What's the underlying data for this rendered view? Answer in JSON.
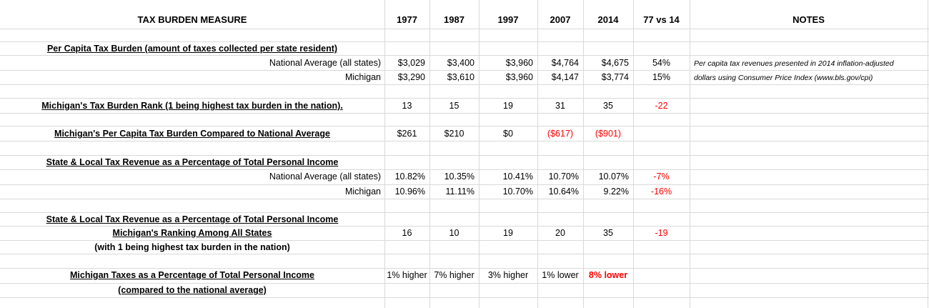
{
  "header": {
    "measure": "TAX BURDEN MEASURE",
    "y1977": "1977",
    "y1987": "1987",
    "y1997": "1997",
    "y2007": "2007",
    "y2014": "2014",
    "change": "77 vs 14",
    "notes": "NOTES"
  },
  "per_capita": {
    "title": "Per Capita Tax Burden (amount of taxes collected per state resident)",
    "national": {
      "label": "National Average (all states)",
      "v1977": "$3,029",
      "v1987": "$3,400",
      "v1997": "$3,960",
      "v2007": "$4,764",
      "v2014": "$4,675",
      "change": "54%"
    },
    "michigan": {
      "label": "Michigan",
      "v1977": "$3,290",
      "v1987": "$3,610",
      "v1997": "$3,960",
      "v2007": "$4,147",
      "v2014": "$3,774",
      "change": "15%"
    },
    "note_line1": "Per capita tax revenues presented in 2014 inflation-adjusted",
    "note_line2": "dollars using Consumer Price Index (www.bls.gov/cpi)"
  },
  "rank": {
    "title": "Michigan's Tax Burden Rank (1 being highest tax burden in the nation).",
    "v1977": "13",
    "v1987": "15",
    "v1997": "19",
    "v2007": "31",
    "v2014": "35",
    "change": "-22"
  },
  "compare": {
    "title": "Michigan's Per Capita Tax Burden Compared to National Average",
    "v1977": "$261",
    "v1987": "$210",
    "v1997": "$0",
    "v2007": "($617)",
    "v2014": "($901)"
  },
  "pct_income": {
    "title": "State & Local Tax Revenue as a Percentage of Total Personal Income",
    "national": {
      "label": "National Average (all states)",
      "v1977": "10.82%",
      "v1987": "10.35%",
      "v1997": "10.41%",
      "v2007": "10.70%",
      "v2014": "10.07%",
      "change": "-7%"
    },
    "michigan": {
      "label": "Michigan",
      "v1977": "10.96%",
      "v1987": "11.11%",
      "v1997": "10.70%",
      "v2007": "10.64%",
      "v2014": "9.22%",
      "change": "-16%"
    }
  },
  "ranking": {
    "title": "State & Local Tax Revenue as a Percentage of Total Personal Income ",
    "subtitle": "Michigan's Ranking Among All States",
    "footnote": "(with 1 being highest tax burden in the nation)",
    "v1977": "16",
    "v1987": "10",
    "v1997": "19",
    "v2007": "20",
    "v2014": "35",
    "change": "-19"
  },
  "mi_pct": {
    "title": "Michigan Taxes as a Percentage of Total Personal Income",
    "subtitle": "(compared to the national average)",
    "v1977": "1% higher",
    "v1987": "7% higher",
    "v1997": "3% higher",
    "v2007": "1% lower",
    "v2014": "8% lower"
  },
  "colors": {
    "negative": "#ff0000",
    "grid": "#d9d9d9"
  }
}
